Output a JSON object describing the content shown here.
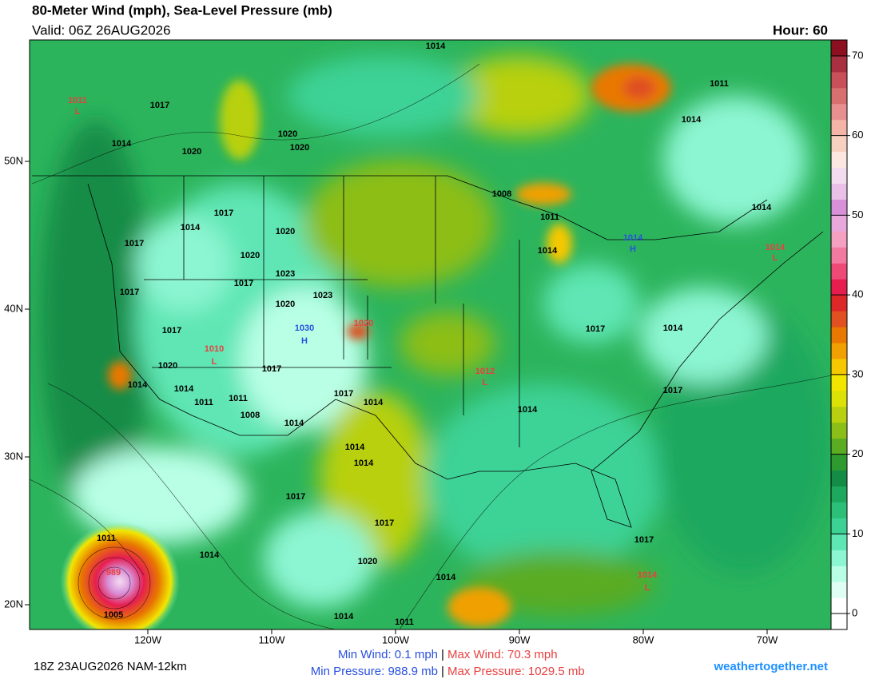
{
  "header": {
    "title": "80-Meter Wind (mph), Sea-Level Pressure (mb)",
    "valid": "Valid: 06Z 26AUG2026",
    "hour": "Hour: 60"
  },
  "map": {
    "lat_ticks": [
      {
        "value": 20,
        "label": "20N"
      },
      {
        "value": 30,
        "label": "30N"
      },
      {
        "value": 40,
        "label": "40N"
      },
      {
        "value": 50,
        "label": "50N"
      }
    ],
    "lon_ticks": [
      {
        "value": -120,
        "label": "120W"
      },
      {
        "value": -110,
        "label": "110W"
      },
      {
        "value": -100,
        "label": "100W"
      },
      {
        "value": -90,
        "label": "90W"
      },
      {
        "value": -80,
        "label": "80W"
      },
      {
        "value": -70,
        "label": "70W"
      }
    ],
    "pressure_labels": [
      {
        "text": "1014",
        "color": "#000000"
      },
      {
        "text": "1011",
        "color": "#e84040"
      },
      {
        "text": "L",
        "color": "#e84040"
      },
      {
        "text": "1017",
        "color": "#000000"
      },
      {
        "text": "1014",
        "color": "#000000"
      },
      {
        "text": "1020",
        "color": "#000000"
      },
      {
        "text": "1020",
        "color": "#000000"
      },
      {
        "text": "1020",
        "color": "#000000"
      },
      {
        "text": "1011",
        "color": "#000000"
      },
      {
        "text": "1014",
        "color": "#000000"
      },
      {
        "text": "1008",
        "color": "#000000"
      },
      {
        "text": "1011",
        "color": "#000000"
      },
      {
        "text": "1014",
        "color": "#000000"
      },
      {
        "text": "1017",
        "color": "#000000"
      },
      {
        "text": "1014",
        "color": "#000000"
      },
      {
        "text": "1020",
        "color": "#000000"
      },
      {
        "text": "1014",
        "color": "#000000"
      },
      {
        "text": "1014",
        "color": "#2850e0"
      },
      {
        "text": "H",
        "color": "#2850e0"
      },
      {
        "text": "1014",
        "color": "#e84040"
      },
      {
        "text": "L",
        "color": "#e84040"
      },
      {
        "text": "1017",
        "color": "#000000"
      },
      {
        "text": "1020",
        "color": "#000000"
      },
      {
        "text": "1023",
        "color": "#000000"
      },
      {
        "text": "1017",
        "color": "#000000"
      },
      {
        "text": "1017",
        "color": "#000000"
      },
      {
        "text": "1023",
        "color": "#000000"
      },
      {
        "text": "1020",
        "color": "#000000"
      },
      {
        "text": "1017",
        "color": "#000000"
      },
      {
        "text": "1030",
        "color": "#2850e0"
      },
      {
        "text": "H",
        "color": "#2850e0"
      },
      {
        "text": "1020",
        "color": "#e84040"
      },
      {
        "text": "1010",
        "color": "#e84040"
      },
      {
        "text": "L",
        "color": "#e84040"
      },
      {
        "text": "1017",
        "color": "#000000"
      },
      {
        "text": "1014",
        "color": "#000000"
      },
      {
        "text": "1012",
        "color": "#e84040"
      },
      {
        "text": "L",
        "color": "#e84040"
      },
      {
        "text": "1020",
        "color": "#000000"
      },
      {
        "text": "1017",
        "color": "#000000"
      },
      {
        "text": "1014",
        "color": "#000000"
      },
      {
        "text": "1014",
        "color": "#000000"
      },
      {
        "text": "1011",
        "color": "#000000"
      },
      {
        "text": "1017",
        "color": "#000000"
      },
      {
        "text": "1014",
        "color": "#000000"
      },
      {
        "text": "1017",
        "color": "#000000"
      },
      {
        "text": "1011",
        "color": "#000000"
      },
      {
        "text": "1008",
        "color": "#000000"
      },
      {
        "text": "1014",
        "color": "#000000"
      },
      {
        "text": "1014",
        "color": "#000000"
      },
      {
        "text": "1014",
        "color": "#000000"
      },
      {
        "text": "1014",
        "color": "#000000"
      },
      {
        "text": "1017",
        "color": "#000000"
      },
      {
        "text": "1017",
        "color": "#000000"
      },
      {
        "text": "1011",
        "color": "#000000"
      },
      {
        "text": "1014",
        "color": "#000000"
      },
      {
        "text": "1017",
        "color": "#000000"
      },
      {
        "text": "1020",
        "color": "#000000"
      },
      {
        "text": "1014",
        "color": "#000000"
      },
      {
        "text": "1014",
        "color": "#e84040"
      },
      {
        "text": "L",
        "color": "#e84040"
      },
      {
        "text": "1005",
        "color": "#000000"
      },
      {
        "text": "1014",
        "color": "#000000"
      },
      {
        "text": "1011",
        "color": "#000000"
      },
      {
        "text": "989",
        "color": "#e84040"
      }
    ]
  },
  "colorbar": {
    "lim": [
      -2,
      72
    ],
    "ticks": [
      0,
      10,
      20,
      30,
      40,
      50,
      60,
      70
    ],
    "colors": [
      "#ffffff",
      "#ffffff",
      "#e0fff4",
      "#b8ffe6",
      "#8cf5d2",
      "#5ee6b4",
      "#3cd296",
      "#2cbf78",
      "#1ea85e",
      "#148c46",
      "#2e9a30",
      "#5aac22",
      "#8cbe18",
      "#b8d010",
      "#dce206",
      "#f2e600",
      "#f5c800",
      "#f0a000",
      "#e87800",
      "#e05020",
      "#dc2828",
      "#e61e50",
      "#ee4a78",
      "#f27aa0",
      "#f4a0c0",
      "#e8a8dc",
      "#d890d8",
      "#e8c0e8",
      "#f4dcf0",
      "#fce8e0",
      "#f8d0c0",
      "#f4b4a8",
      "#e89090",
      "#d87070",
      "#c85058",
      "#a83040",
      "#8c1020"
    ]
  },
  "footer": {
    "run": "18Z 23AUG2026 NAM-12km",
    "min_wind": "Min Wind:   0.1 mph",
    "separator": "|",
    "max_wind": "Max Wind: 70.3 mph",
    "min_pressure": "Min Pressure: 988.9 mb",
    "max_pressure": "Max Pressure: 1029.5 mb",
    "site": "weathertogether.net"
  }
}
